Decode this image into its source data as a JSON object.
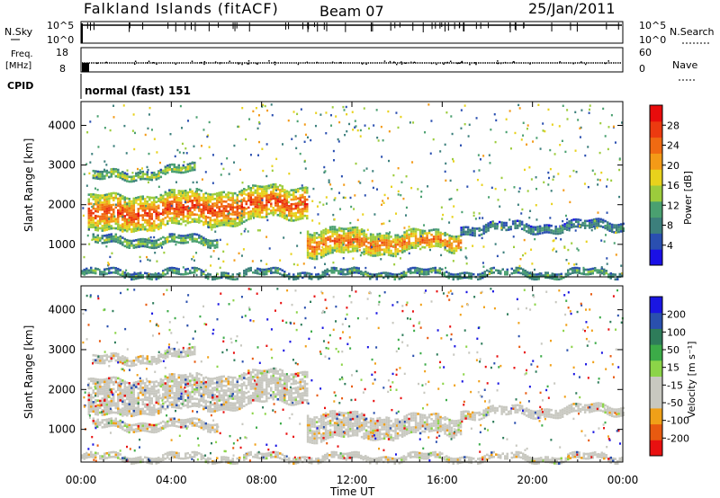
{
  "header": {
    "station": "Falkland Islands (fitACF)",
    "beam": "Beam 07",
    "date": "25/Jan/2011"
  },
  "top_panels": {
    "nsky": {
      "label": "N.Sky",
      "ticks": [
        "10^5",
        "10^0"
      ]
    },
    "nsearch": {
      "label": "N.Search",
      "ticks": [
        "10^5",
        "10^0"
      ]
    },
    "freq": {
      "label_line1": "Freq.",
      "label_line2": "[MHz]",
      "ticks": [
        "18",
        "8"
      ]
    },
    "nave": {
      "label": "Nave",
      "ticks": [
        "60",
        "0"
      ]
    },
    "cpid": {
      "label": "CPID",
      "value": "normal (fast) 151"
    }
  },
  "time_axis": {
    "label": "Time UT",
    "ticks": [
      "00:00",
      "04:00",
      "08:00",
      "12:00",
      "16:00",
      "20:00",
      "00:00"
    ]
  },
  "range_axis": {
    "label": "Slant Range [km]",
    "ticks": [
      "1000",
      "2000",
      "3000",
      "4000"
    ]
  },
  "colorbars": {
    "power": {
      "label": "Power [dB]",
      "ticks": [
        "4",
        "8",
        "12",
        "16",
        "20",
        "24",
        "28"
      ],
      "colors": [
        "#1a10e6",
        "#2a4fb0",
        "#3c7f7c",
        "#4aa070",
        "#9ccc3c",
        "#e8d21c",
        "#f39a17",
        "#f06a12",
        "#ec3a10",
        "#e80c0c"
      ]
    },
    "velocity": {
      "label": "Velocity [m s⁻¹]",
      "ticks": [
        "200",
        "100",
        "50",
        "15",
        "-15",
        "-50",
        "-100",
        "-200"
      ],
      "colors": [
        "#e81010",
        "#e85a10",
        "#f0a018",
        "#c8c8c0",
        "#c8c8c0",
        "#8cd448",
        "#3cab48",
        "#2e7c5a",
        "#2a50ae",
        "#1a16e2"
      ]
    }
  },
  "chart_data": {
    "type": "heatmap",
    "x_range_hours": [
      0,
      24
    ],
    "y_range_km": [
      180,
      4600
    ],
    "power_bands": [
      {
        "name": "main band early",
        "t": [
          0.3,
          10.0
        ],
        "r_start": [
          1300,
          1700
        ],
        "r_end": [
          2200,
          2500
        ],
        "power_db": 24
      },
      {
        "name": "upper band",
        "t": [
          0.5,
          5.0
        ],
        "r_start": [
          2600,
          2800
        ],
        "r_end": [
          2800,
          3000
        ],
        "power_db": 14
      },
      {
        "name": "mid band",
        "t": [
          0.5,
          6.0
        ],
        "r_start": [
          1000,
          1000
        ],
        "r_end": [
          1200,
          1200
        ],
        "power_db": 12
      },
      {
        "name": "main band late",
        "t": [
          10.0,
          16.8
        ],
        "r_start": [
          700,
          900
        ],
        "r_end": [
          1400,
          1300
        ],
        "power_db": 22
      },
      {
        "name": "late band blue",
        "t": [
          16.8,
          24.0
        ],
        "r_start": [
          1300,
          1400
        ],
        "r_end": [
          1500,
          1600
        ],
        "power_db": 8
      },
      {
        "name": "ground scatter near",
        "t": [
          0.0,
          24.0
        ],
        "r_start": [
          200,
          200
        ],
        "r_end": [
          350,
          350
        ],
        "power_db": 10
      }
    ],
    "velocity_summary": "mostly low-velocity (-15 to 15 m/s) scatter with scattered positive and negative pixels"
  }
}
